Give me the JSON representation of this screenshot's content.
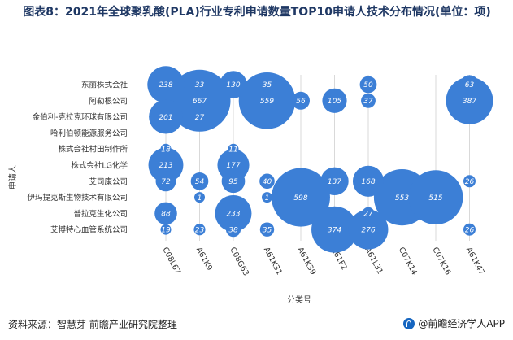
{
  "title": "图表8：2021年全球聚乳酸(PLA)行业专利申请数量TOP10申请人技术分布情况(单位：项)",
  "source": "资料来源：智慧芽 前瞻产业研究院整理",
  "brand": "@前瞻经济学人APP",
  "colors": {
    "bubble": "#3c7fd6",
    "gridline": "#d9d9d9"
  },
  "chart_data": {
    "type": "scatter",
    "xlabel": "分类号",
    "ylabel": "申请人",
    "x_categories": [
      "C08L67",
      "A61K9",
      "C08G63",
      "A61K31",
      "A61K39",
      "A61F2",
      "A61L31",
      "C07K14",
      "C07K16",
      "A61K47"
    ],
    "y_categories": [
      "东丽株式会社",
      "阿勒根公司",
      "金伯利-克拉克环球有限公司",
      "哈利伯顿能源服务公司",
      "株式会社村田制作所",
      "株式会社LG化学",
      "艾司康公司",
      "伊玛提克斯生物技术有限公司",
      "普拉克生化公司",
      "艾博特心血管系统公司"
    ],
    "points": [
      {
        "y": "东丽株式会社",
        "x": "C08L67",
        "value": 238
      },
      {
        "y": "东丽株式会社",
        "x": "A61K9",
        "value": 33
      },
      {
        "y": "东丽株式会社",
        "x": "C08G63",
        "value": 130
      },
      {
        "y": "东丽株式会社",
        "x": "A61K31",
        "value": 35
      },
      {
        "y": "东丽株式会社",
        "x": "A61L31",
        "value": 50
      },
      {
        "y": "东丽株式会社",
        "x": "A61K47",
        "value": 63
      },
      {
        "y": "阿勒根公司",
        "x": "A61K9",
        "value": 667
      },
      {
        "y": "阿勒根公司",
        "x": "A61K31",
        "value": 559
      },
      {
        "y": "阿勒根公司",
        "x": "A61K39",
        "value": 56
      },
      {
        "y": "阿勒根公司",
        "x": "A61F2",
        "value": 105
      },
      {
        "y": "阿勒根公司",
        "x": "A61L31",
        "value": 37
      },
      {
        "y": "阿勒根公司",
        "x": "A61K47",
        "value": 387
      },
      {
        "y": "金伯利-克拉克环球有限公司",
        "x": "C08L67",
        "value": 201
      },
      {
        "y": "金伯利-克拉克环球有限公司",
        "x": "A61K9",
        "value": 27
      },
      {
        "y": "株式会社村田制作所",
        "x": "C08L67",
        "value": 18
      },
      {
        "y": "株式会社村田制作所",
        "x": "C08G63",
        "value": 11
      },
      {
        "y": "株式会社LG化学",
        "x": "C08L67",
        "value": 213
      },
      {
        "y": "株式会社LG化学",
        "x": "C08G63",
        "value": 177
      },
      {
        "y": "艾司康公司",
        "x": "C08L67",
        "value": 72
      },
      {
        "y": "艾司康公司",
        "x": "A61K9",
        "value": 54
      },
      {
        "y": "艾司康公司",
        "x": "C08G63",
        "value": 95
      },
      {
        "y": "艾司康公司",
        "x": "A61K31",
        "value": 40
      },
      {
        "y": "艾司康公司",
        "x": "A61F2",
        "value": 137
      },
      {
        "y": "艾司康公司",
        "x": "A61L31",
        "value": 168
      },
      {
        "y": "艾司康公司",
        "x": "A61K47",
        "value": 26
      },
      {
        "y": "伊玛提克斯生物技术有限公司",
        "x": "A61K9",
        "value": 1
      },
      {
        "y": "伊玛提克斯生物技术有限公司",
        "x": "A61K31",
        "value": 1
      },
      {
        "y": "伊玛提克斯生物技术有限公司",
        "x": "A61K39",
        "value": 598
      },
      {
        "y": "伊玛提克斯生物技术有限公司",
        "x": "C07K14",
        "value": 553
      },
      {
        "y": "伊玛提克斯生物技术有限公司",
        "x": "C07K16",
        "value": 515
      },
      {
        "y": "普拉克生化公司",
        "x": "C08L67",
        "value": 88
      },
      {
        "y": "普拉克生化公司",
        "x": "C08G63",
        "value": 233
      },
      {
        "y": "普拉克生化公司",
        "x": "A61L31",
        "value": 27
      },
      {
        "y": "艾博特心血管系统公司",
        "x": "C08L67",
        "value": 19
      },
      {
        "y": "艾博特心血管系统公司",
        "x": "A61K9",
        "value": 23
      },
      {
        "y": "艾博特心血管系统公司",
        "x": "C08G63",
        "value": 38
      },
      {
        "y": "艾博特心血管系统公司",
        "x": "A61K31",
        "value": 35
      },
      {
        "y": "艾博特心血管系统公司",
        "x": "A61F2",
        "value": 374
      },
      {
        "y": "艾博特心血管系统公司",
        "x": "A61L31",
        "value": 276
      },
      {
        "y": "艾博特心血管系统公司",
        "x": "A61K47",
        "value": 26
      }
    ]
  }
}
